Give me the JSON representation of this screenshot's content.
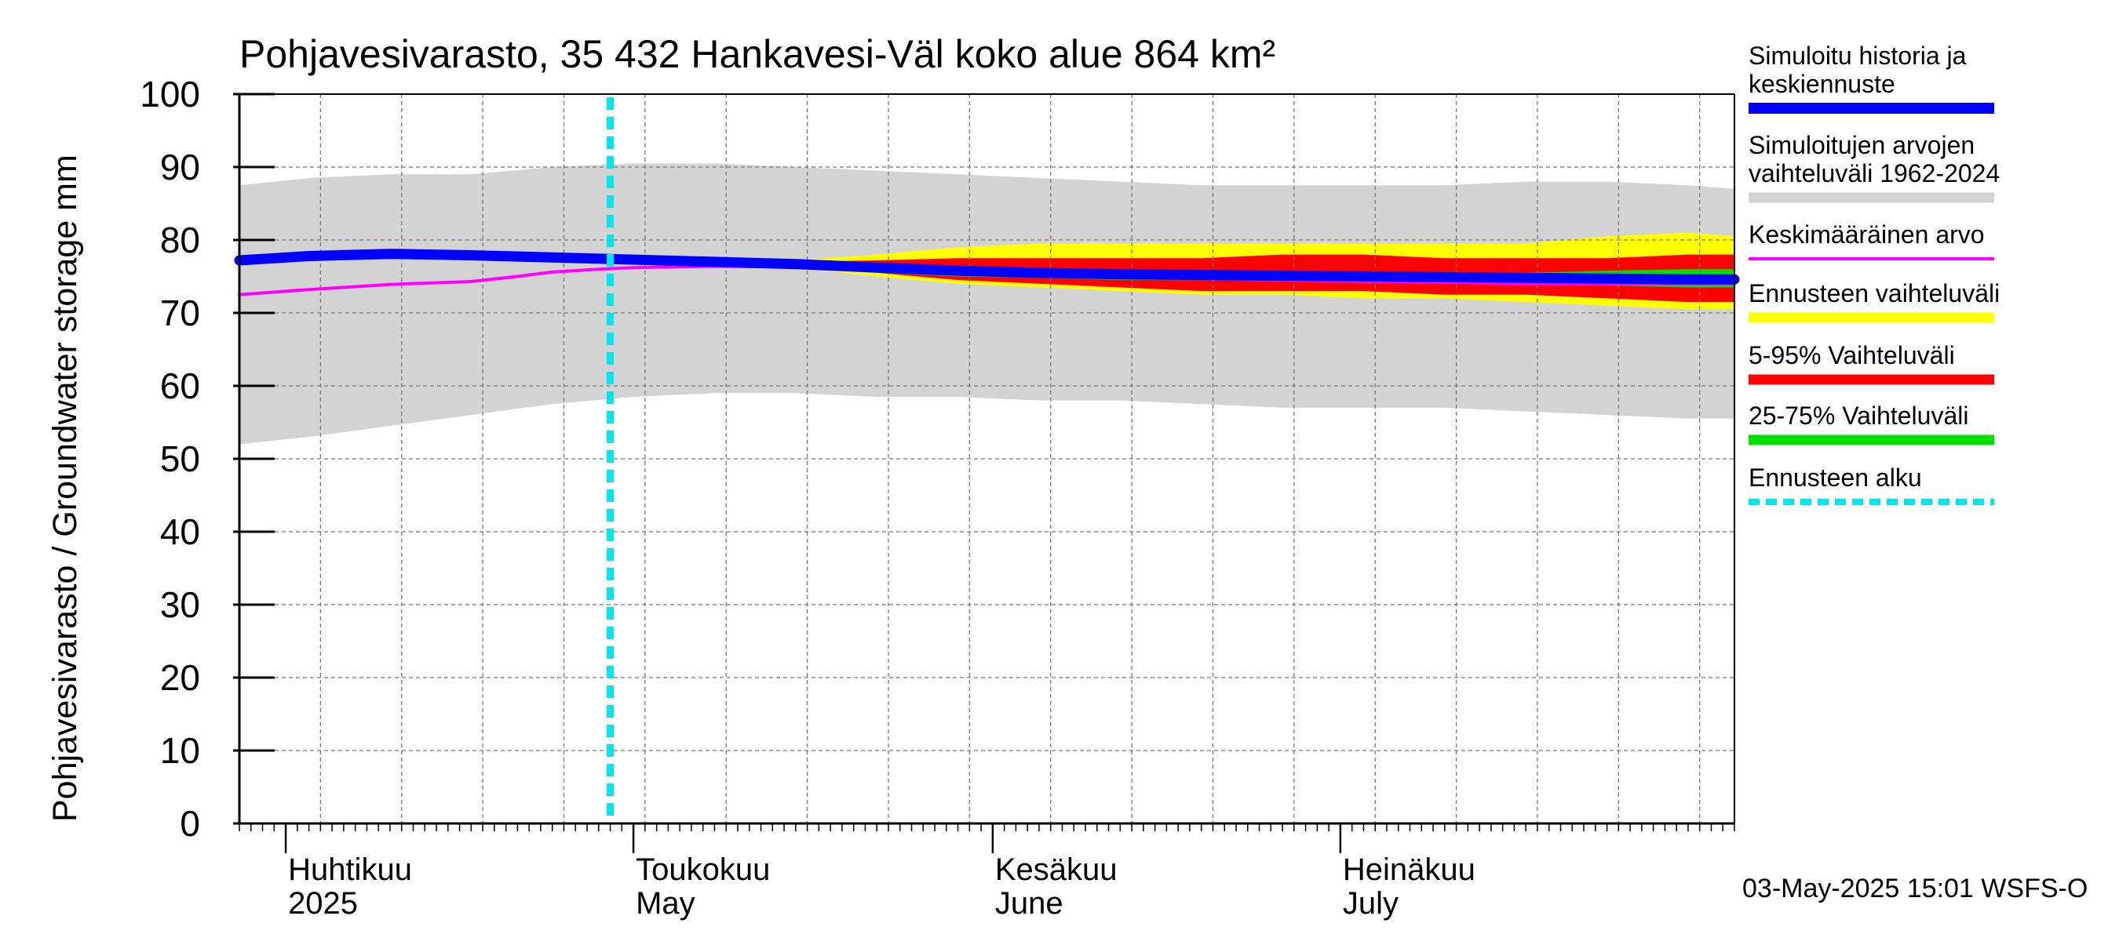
{
  "chart_data": {
    "type": "area",
    "title": "Pohjavesivarasto, 35 432 Hankavesi-Väl koko alue 864 km²",
    "ylabel": "Pohjavesivarasto / Groundwater storage   mm",
    "ylim": [
      0,
      100
    ],
    "yticks": [
      0,
      10,
      20,
      30,
      40,
      50,
      60,
      70,
      80,
      90,
      100
    ],
    "xlim": [
      "2025-03-28",
      "2025-08-04"
    ],
    "month_labels": [
      {
        "date": "2025-04-01",
        "line1": "Huhtikuu",
        "line2": "2025"
      },
      {
        "date": "2025-05-01",
        "line1": "Toukokuu",
        "line2": "May"
      },
      {
        "date": "2025-06-01",
        "line1": "Kesäkuu",
        "line2": "June"
      },
      {
        "date": "2025-07-01",
        "line1": "Heinäkuu",
        "line2": "July"
      }
    ],
    "grid": true,
    "legend_position": "right",
    "forecast_start": "2025-04-29",
    "colors": {
      "simulated": "#0000ff",
      "hist_range": "#d3d3d3",
      "mean": "#ff00ff",
      "forecast_range": "#ffff00",
      "p5_95": "#ff0000",
      "p25_75": "#00e000",
      "forecast_start": "#00e5ee"
    },
    "series": [
      {
        "key": "hist_range",
        "name": "Simuloitujen arvojen vaihteluväli 1962-2024",
        "points": [
          [
            "2025-03-28",
            52,
            87.5
          ],
          [
            "2025-04-03",
            53,
            88.5
          ],
          [
            "2025-04-10",
            54.5,
            89
          ],
          [
            "2025-04-17",
            56,
            89
          ],
          [
            "2025-04-24",
            57.5,
            90
          ],
          [
            "2025-05-01",
            58.5,
            90.5
          ],
          [
            "2025-05-08",
            59,
            90.5
          ],
          [
            "2025-05-15",
            59,
            90
          ],
          [
            "2025-05-22",
            58.5,
            89.5
          ],
          [
            "2025-05-29",
            58.5,
            89
          ],
          [
            "2025-06-05",
            58,
            88.5
          ],
          [
            "2025-06-12",
            58,
            88
          ],
          [
            "2025-06-19",
            57.5,
            87.5
          ],
          [
            "2025-06-26",
            57,
            87.5
          ],
          [
            "2025-07-03",
            57,
            87.5
          ],
          [
            "2025-07-10",
            57,
            87.5
          ],
          [
            "2025-07-17",
            56.5,
            88
          ],
          [
            "2025-07-24",
            56,
            88
          ],
          [
            "2025-07-31",
            55.5,
            87.5
          ],
          [
            "2025-08-04",
            55.5,
            87
          ]
        ]
      },
      {
        "key": "forecast_range",
        "name": "Ennusteen vaihteluväli",
        "points": [
          [
            "2025-04-29",
            77,
            77
          ],
          [
            "2025-05-08",
            76.8,
            77
          ],
          [
            "2025-05-15",
            76.2,
            77.2
          ],
          [
            "2025-05-22",
            75,
            78
          ],
          [
            "2025-05-29",
            74,
            79
          ],
          [
            "2025-06-05",
            73.5,
            79.5
          ],
          [
            "2025-06-12",
            73,
            79.5
          ],
          [
            "2025-06-19",
            72.5,
            79.5
          ],
          [
            "2025-06-26",
            72.5,
            79.5
          ],
          [
            "2025-07-03",
            72,
            79.5
          ],
          [
            "2025-07-10",
            72,
            79.5
          ],
          [
            "2025-07-17",
            71.5,
            79.5
          ],
          [
            "2025-07-24",
            71,
            80.5
          ],
          [
            "2025-07-31",
            70.5,
            81
          ],
          [
            "2025-08-04",
            70.5,
            80.5
          ]
        ]
      },
      {
        "key": "p5_95",
        "name": "5-95% Vaihteluväli",
        "points": [
          [
            "2025-04-29",
            77,
            77
          ],
          [
            "2025-05-08",
            76.9,
            77
          ],
          [
            "2025-05-15",
            76.5,
            77
          ],
          [
            "2025-05-22",
            75.5,
            77.2
          ],
          [
            "2025-05-29",
            74.5,
            77.5
          ],
          [
            "2025-06-05",
            74,
            77.5
          ],
          [
            "2025-06-12",
            73.5,
            77.5
          ],
          [
            "2025-06-19",
            73,
            77.5
          ],
          [
            "2025-06-26",
            73,
            78
          ],
          [
            "2025-07-03",
            73,
            78
          ],
          [
            "2025-07-10",
            72.5,
            77.5
          ],
          [
            "2025-07-17",
            72.5,
            77.5
          ],
          [
            "2025-07-24",
            72,
            77.5
          ],
          [
            "2025-07-31",
            71.5,
            78
          ],
          [
            "2025-08-04",
            71.5,
            78
          ]
        ]
      },
      {
        "key": "p25_75",
        "name": "25-75% Vaihteluväli",
        "points": [
          [
            "2025-04-29",
            77,
            77
          ],
          [
            "2025-05-08",
            76.9,
            77
          ],
          [
            "2025-05-15",
            76.5,
            76.8
          ],
          [
            "2025-05-22",
            75.5,
            76.3
          ],
          [
            "2025-05-29",
            75,
            76
          ],
          [
            "2025-06-05",
            74.8,
            75.8
          ],
          [
            "2025-06-12",
            74.5,
            75.8
          ],
          [
            "2025-06-19",
            74.5,
            75.8
          ],
          [
            "2025-06-26",
            74.5,
            75.8
          ],
          [
            "2025-07-03",
            74.3,
            75.5
          ],
          [
            "2025-07-10",
            74,
            75.5
          ],
          [
            "2025-07-17",
            74,
            75.5
          ],
          [
            "2025-07-24",
            73.8,
            75.8
          ],
          [
            "2025-07-31",
            73.5,
            76
          ],
          [
            "2025-08-04",
            73.5,
            76
          ]
        ]
      },
      {
        "key": "mean",
        "name": "Keskimääräinen arvo",
        "points": [
          [
            "2025-03-28",
            72.5
          ],
          [
            "2025-04-03",
            73.2
          ],
          [
            "2025-04-10",
            73.9
          ],
          [
            "2025-04-17",
            74.3
          ],
          [
            "2025-04-21",
            75
          ],
          [
            "2025-04-24",
            75.6
          ],
          [
            "2025-04-28",
            76
          ],
          [
            "2025-05-01",
            76.2
          ],
          [
            "2025-05-08",
            76.4
          ],
          [
            "2025-05-15",
            76.3
          ],
          [
            "2025-05-22",
            76
          ],
          [
            "2025-05-29",
            75.5
          ],
          [
            "2025-06-05",
            75.2
          ],
          [
            "2025-06-12",
            75
          ],
          [
            "2025-06-19",
            74.7
          ],
          [
            "2025-06-26",
            74.5
          ],
          [
            "2025-07-03",
            74.3
          ],
          [
            "2025-07-10",
            74.2
          ],
          [
            "2025-07-17",
            74
          ],
          [
            "2025-07-24",
            74
          ],
          [
            "2025-07-31",
            74
          ],
          [
            "2025-08-04",
            74
          ]
        ]
      },
      {
        "key": "simulated",
        "name": "Simuloitu historia ja keskiennuste",
        "points": [
          [
            "2025-03-28",
            77.2
          ],
          [
            "2025-04-03",
            77.8
          ],
          [
            "2025-04-10",
            78.1
          ],
          [
            "2025-04-17",
            77.9
          ],
          [
            "2025-04-24",
            77.6
          ],
          [
            "2025-04-29",
            77.4
          ],
          [
            "2025-05-08",
            77
          ],
          [
            "2025-05-15",
            76.7
          ],
          [
            "2025-05-22",
            76.2
          ],
          [
            "2025-05-29",
            75.8
          ],
          [
            "2025-06-05",
            75.5
          ],
          [
            "2025-06-12",
            75.3
          ],
          [
            "2025-06-19",
            75.2
          ],
          [
            "2025-06-26",
            75.1
          ],
          [
            "2025-07-03",
            75
          ],
          [
            "2025-07-10",
            74.9
          ],
          [
            "2025-07-17",
            74.8
          ],
          [
            "2025-07-24",
            74.7
          ],
          [
            "2025-07-31",
            74.6
          ],
          [
            "2025-08-04",
            74.6
          ]
        ]
      }
    ],
    "legend": [
      {
        "key": "simulated",
        "lines": [
          "Simuloitu historia ja",
          "keskiennuste"
        ],
        "style": "thick"
      },
      {
        "key": "hist_range",
        "lines": [
          "Simuloitujen arvojen",
          "vaihteluväli 1962-2024"
        ],
        "style": "band"
      },
      {
        "key": "mean",
        "lines": [
          "Keskimääräinen arvo"
        ],
        "style": "thin"
      },
      {
        "key": "forecast_range",
        "lines": [
          "Ennusteen vaihteluväli"
        ],
        "style": "band"
      },
      {
        "key": "p5_95",
        "lines": [
          "5-95% Vaihteluväli"
        ],
        "style": "band"
      },
      {
        "key": "p25_75",
        "lines": [
          "25-75% Vaihteluväli"
        ],
        "style": "band"
      },
      {
        "key": "forecast_start",
        "lines": [
          "Ennusteen alku"
        ],
        "style": "dashed"
      }
    ],
    "footer": "03-May-2025 15:01 WSFS-O"
  }
}
